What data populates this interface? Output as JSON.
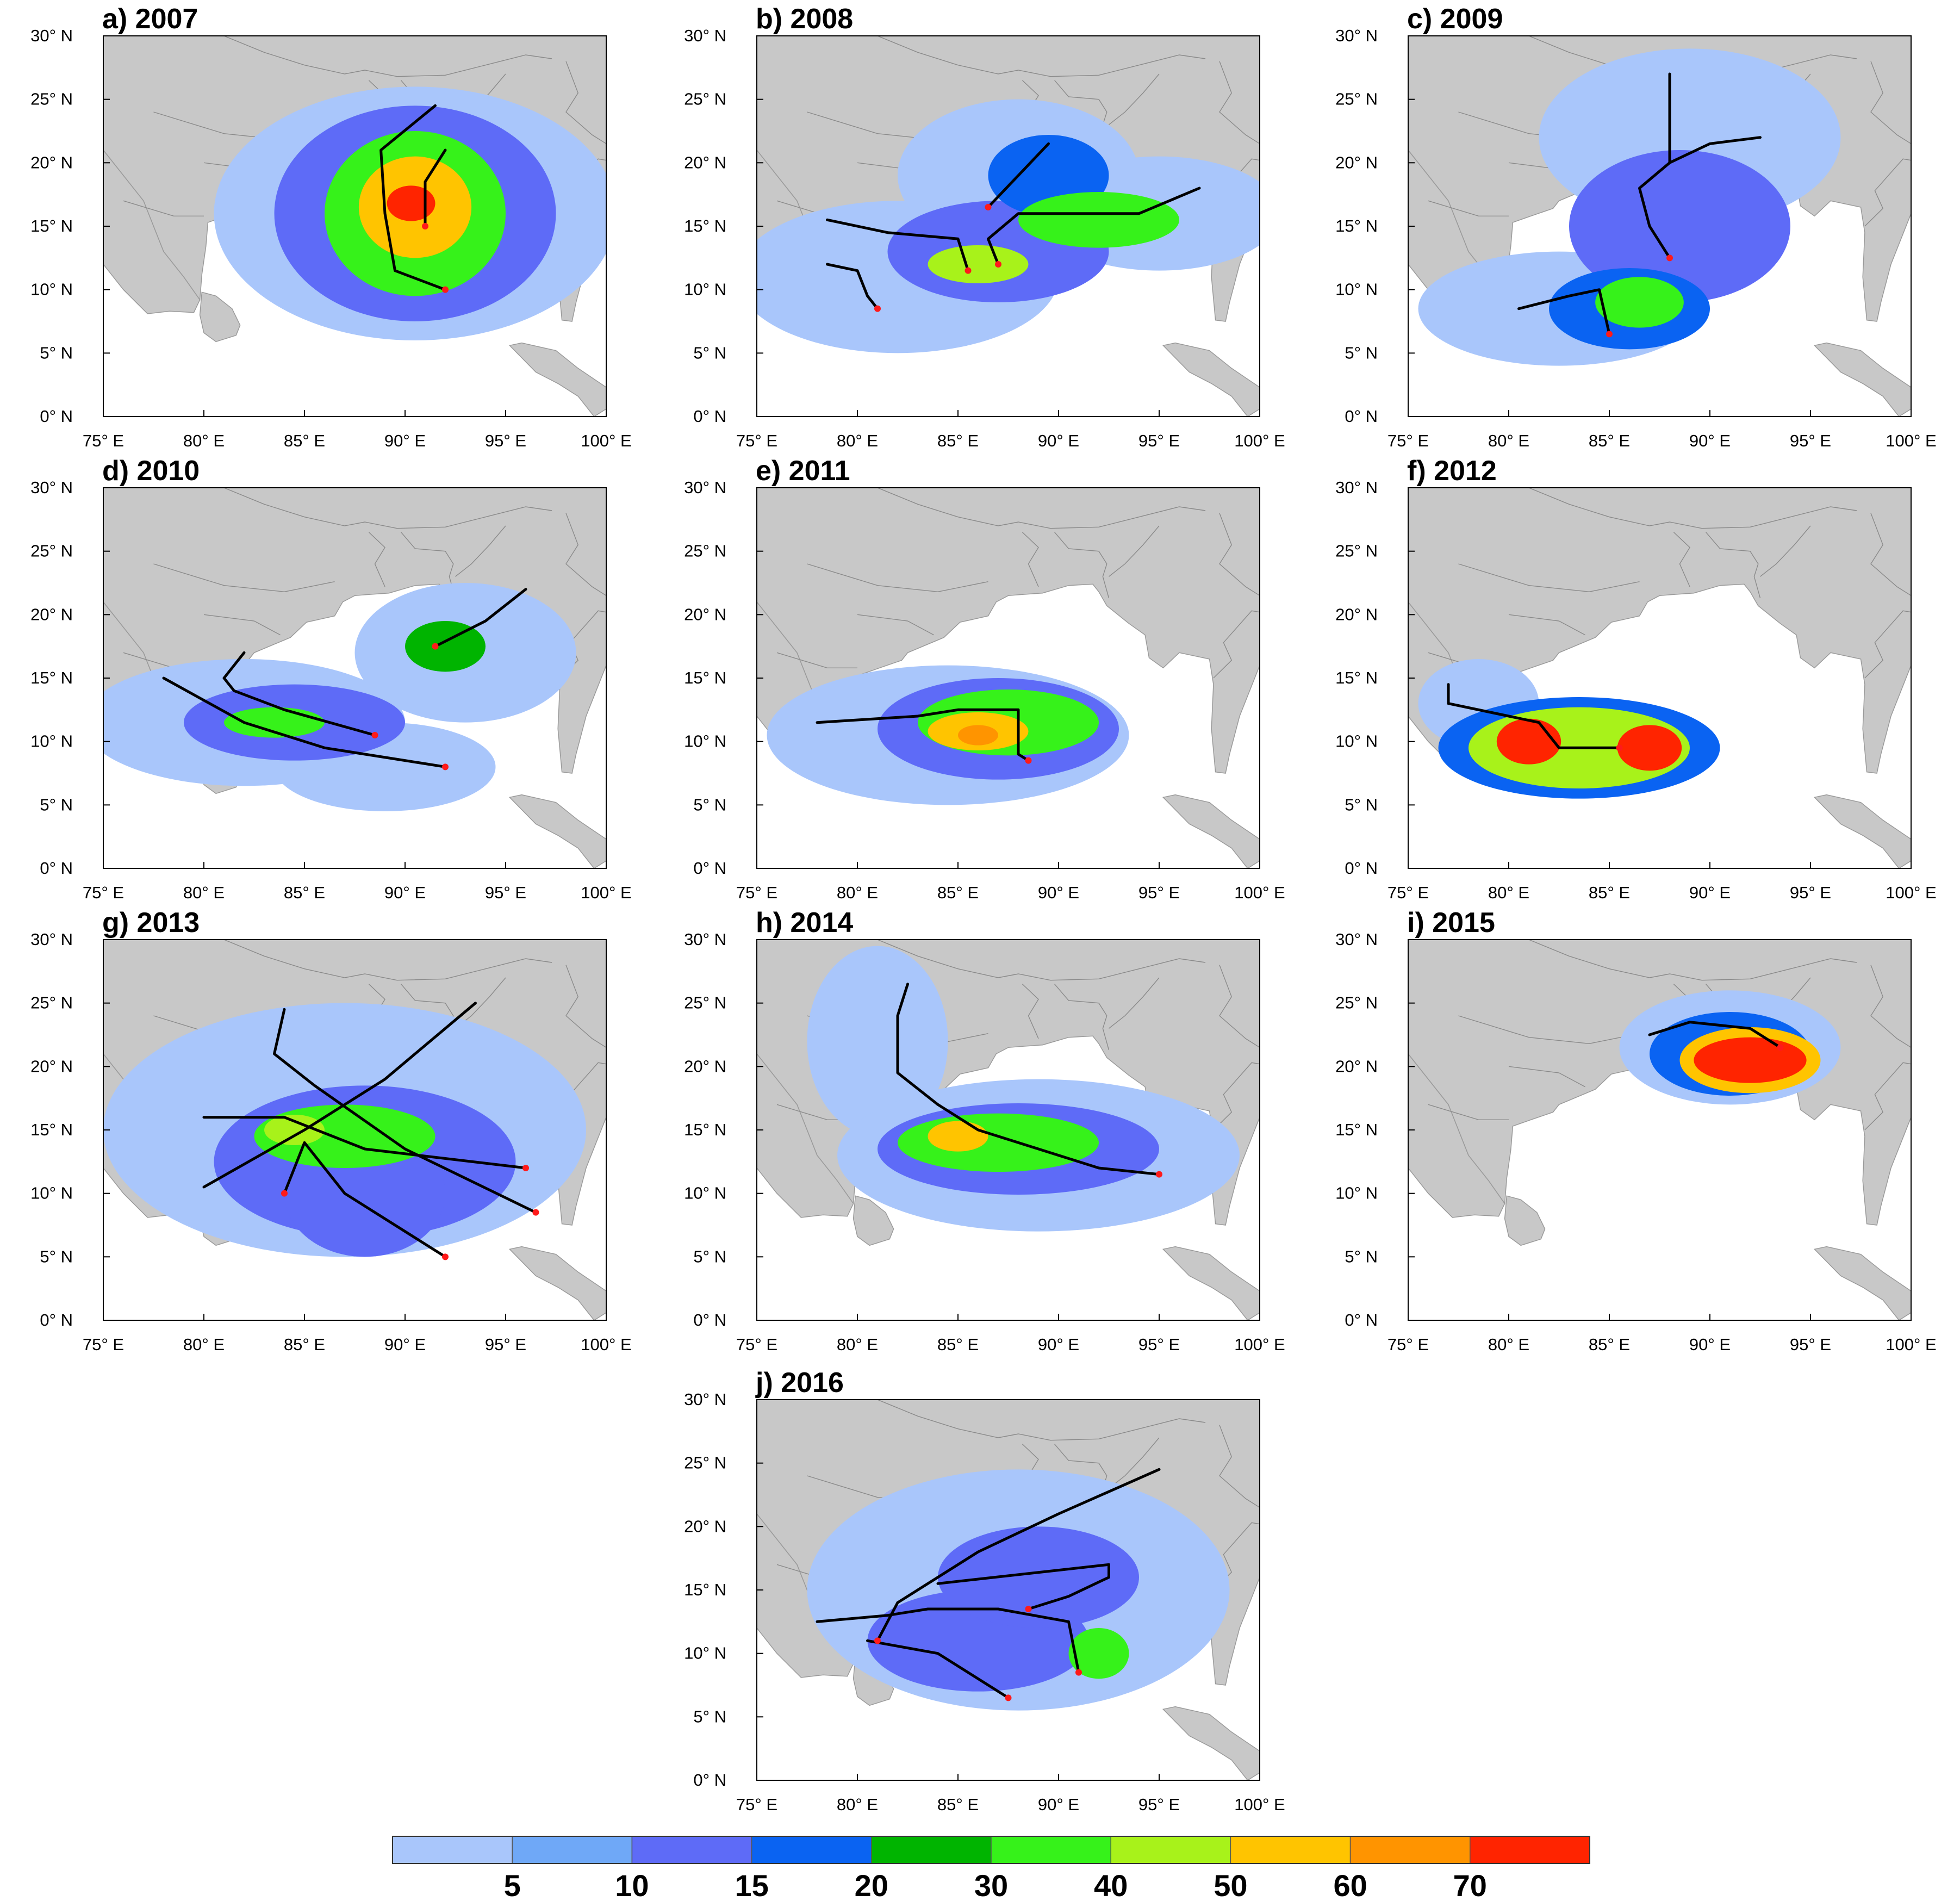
{
  "figure": {
    "x_ticks": [
      "75° E",
      "80° E",
      "85° E",
      "90° E",
      "95° E",
      "100° E"
    ],
    "y_ticks": [
      "0° N",
      "5° N",
      "10° N",
      "15° N",
      "20° N",
      "25° N",
      "30° N"
    ],
    "land_color": "#c8c8c8",
    "sea_color": "#ffffff",
    "track_color": "#000000",
    "genesis_point_color": "#ff1a1a"
  },
  "colorbar": {
    "labels": [
      "5",
      "10",
      "15",
      "20",
      "30",
      "40",
      "50",
      "60",
      "70"
    ],
    "colors": [
      "#a9c6fb",
      "#6fa8f7",
      "#5e6bf7",
      "#0a63f2",
      "#00b400",
      "#36f21a",
      "#a8f21a",
      "#ffc400",
      "#ff9400",
      "#ff2400"
    ]
  },
  "panels": [
    {
      "title": "a) 2007",
      "blobs": [
        {
          "lon": 90.5,
          "lat": 16,
          "rlon": 10,
          "rlat": 10,
          "level": 0
        },
        {
          "lon": 90.5,
          "lat": 16,
          "rlon": 7,
          "rlat": 8.5,
          "level": 2
        },
        {
          "lon": 90.5,
          "lat": 16,
          "rlon": 4.5,
          "rlat": 6.5,
          "level": 5
        },
        {
          "lon": 90.5,
          "lat": 16.5,
          "rlon": 2.8,
          "rlat": 4,
          "level": 7
        },
        {
          "lon": 90.3,
          "lat": 16.8,
          "rlon": 1.2,
          "rlat": 1.4,
          "level": 9
        }
      ],
      "tracks": [
        [
          [
            92,
            10
          ],
          [
            89.5,
            11.5
          ],
          [
            89,
            16
          ],
          [
            88.8,
            21
          ],
          [
            91.5,
            24.5
          ]
        ],
        [
          [
            91,
            15
          ],
          [
            91,
            18.5
          ],
          [
            92,
            21
          ]
        ]
      ],
      "points": [
        [
          92,
          10
        ],
        [
          91,
          15
        ]
      ]
    },
    {
      "title": "b) 2008",
      "blobs": [
        {
          "lon": 82,
          "lat": 11,
          "rlon": 8,
          "rlat": 6,
          "level": 0
        },
        {
          "lon": 88,
          "lat": 19,
          "rlon": 6,
          "rlat": 6,
          "level": 0
        },
        {
          "lon": 95,
          "lat": 16,
          "rlon": 6,
          "rlat": 4.5,
          "level": 0
        },
        {
          "lon": 87,
          "lat": 13,
          "rlon": 5.5,
          "rlat": 4,
          "level": 2
        },
        {
          "lon": 89.5,
          "lat": 19,
          "rlon": 3,
          "rlat": 3.2,
          "level": 3
        },
        {
          "lon": 92,
          "lat": 15.5,
          "rlon": 4,
          "rlat": 2.2,
          "level": 5
        },
        {
          "lon": 86,
          "lat": 12,
          "rlon": 2.5,
          "rlat": 1.5,
          "level": 6
        }
      ],
      "tracks": [
        [
          [
            78.5,
            15.5
          ],
          [
            81.5,
            14.5
          ],
          [
            85,
            14
          ],
          [
            85.5,
            11.5
          ]
        ],
        [
          [
            78.5,
            12
          ],
          [
            80,
            11.5
          ],
          [
            80.5,
            9.5
          ],
          [
            81,
            8.5
          ]
        ],
        [
          [
            87,
            12
          ],
          [
            86.5,
            14
          ],
          [
            88,
            16
          ],
          [
            94,
            16
          ],
          [
            97,
            18
          ]
        ],
        [
          [
            86.5,
            16.5
          ],
          [
            88,
            19
          ],
          [
            89.5,
            21.5
          ]
        ]
      ],
      "points": [
        [
          85.5,
          11.5
        ],
        [
          81,
          8.5
        ],
        [
          87,
          12
        ],
        [
          86.5,
          16.5
        ]
      ]
    },
    {
      "title": "c) 2009",
      "blobs": [
        {
          "lon": 89,
          "lat": 22,
          "rlon": 7.5,
          "rlat": 7,
          "level": 0
        },
        {
          "lon": 82.5,
          "lat": 8.5,
          "rlon": 7,
          "rlat": 4.5,
          "level": 0
        },
        {
          "lon": 88.5,
          "lat": 15,
          "rlon": 5.5,
          "rlat": 6,
          "level": 2
        },
        {
          "lon": 86,
          "lat": 8.5,
          "rlon": 4,
          "rlat": 3.2,
          "level": 3
        },
        {
          "lon": 86.5,
          "lat": 9,
          "rlon": 2.2,
          "rlat": 2,
          "level": 5
        }
      ],
      "tracks": [
        [
          [
            88,
            12.5
          ],
          [
            87,
            15
          ],
          [
            86.5,
            18
          ],
          [
            88,
            20
          ],
          [
            88,
            27
          ]
        ],
        [
          [
            88,
            20
          ],
          [
            90,
            21.5
          ],
          [
            92.5,
            22
          ]
        ],
        [
          [
            85,
            6.5
          ],
          [
            84.5,
            10
          ],
          [
            83,
            9.5
          ],
          [
            80.5,
            8.5
          ]
        ]
      ],
      "points": [
        [
          88,
          12.5
        ],
        [
          85,
          6.5
        ]
      ]
    },
    {
      "title": "d) 2010",
      "blobs": [
        {
          "lon": 82,
          "lat": 11.5,
          "rlon": 8,
          "rlat": 5,
          "level": 0
        },
        {
          "lon": 89,
          "lat": 8,
          "rlon": 5.5,
          "rlat": 3.5,
          "level": 0
        },
        {
          "lon": 93,
          "lat": 17,
          "rlon": 5.5,
          "rlat": 5.5,
          "level": 0
        },
        {
          "lon": 84.5,
          "lat": 11.5,
          "rlon": 5.5,
          "rlat": 3,
          "level": 2
        },
        {
          "lon": 92,
          "lat": 17.5,
          "rlon": 2,
          "rlat": 2,
          "level": 4
        },
        {
          "lon": 83.5,
          "lat": 11.5,
          "rlon": 2.5,
          "rlat": 1.2,
          "level": 5
        }
      ],
      "tracks": [
        [
          [
            88.5,
            10.5
          ],
          [
            84,
            12.5
          ],
          [
            81.5,
            14
          ],
          [
            81,
            15
          ],
          [
            82,
            17
          ]
        ],
        [
          [
            92,
            8
          ],
          [
            86,
            9.5
          ],
          [
            82,
            11.5
          ],
          [
            78,
            15
          ]
        ],
        [
          [
            91.5,
            17.5
          ],
          [
            94,
            19.5
          ],
          [
            96,
            22
          ]
        ]
      ],
      "points": [
        [
          88.5,
          10.5
        ],
        [
          92,
          8
        ],
        [
          91.5,
          17.5
        ]
      ]
    },
    {
      "title": "e) 2011",
      "blobs": [
        {
          "lon": 84.5,
          "lat": 10.5,
          "rlon": 9,
          "rlat": 5.5,
          "level": 0
        },
        {
          "lon": 87,
          "lat": 11,
          "rlon": 6,
          "rlat": 4,
          "level": 2
        },
        {
          "lon": 87.5,
          "lat": 11.5,
          "rlon": 4.5,
          "rlat": 2.6,
          "level": 5
        },
        {
          "lon": 86,
          "lat": 10.8,
          "rlon": 2.5,
          "rlat": 1.5,
          "level": 7
        },
        {
          "lon": 86,
          "lat": 10.5,
          "rlon": 1,
          "rlat": 0.8,
          "level": 8
        }
      ],
      "tracks": [
        [
          [
            88.5,
            8.5
          ],
          [
            88,
            9
          ],
          [
            88,
            12.5
          ],
          [
            85,
            12.5
          ],
          [
            83,
            12
          ],
          [
            78,
            11.5
          ]
        ]
      ],
      "points": [
        [
          88.5,
          8.5
        ]
      ]
    },
    {
      "title": "f) 2012",
      "blobs": [
        {
          "lon": 78.5,
          "lat": 13,
          "rlon": 3,
          "rlat": 3.5,
          "level": 0
        },
        {
          "lon": 83.5,
          "lat": 9.5,
          "rlon": 7,
          "rlat": 4,
          "level": 3
        },
        {
          "lon": 83.5,
          "lat": 9.5,
          "rlon": 5.5,
          "rlat": 3.2,
          "level": 6
        },
        {
          "lon": 81,
          "lat": 10,
          "rlon": 1.6,
          "rlat": 1.8,
          "level": 9
        },
        {
          "lon": 87,
          "lat": 9.5,
          "rlon": 1.6,
          "rlat": 1.8,
          "level": 9
        }
      ],
      "tracks": [
        [
          [
            77,
            14.5
          ],
          [
            77,
            13
          ],
          [
            80,
            12
          ],
          [
            81.5,
            11.5
          ],
          [
            82.5,
            9.5
          ],
          [
            85.5,
            9.5
          ]
        ]
      ],
      "points": [
        [
          85.5,
          9.5
        ]
      ]
    },
    {
      "title": "g) 2013",
      "blobs": [
        {
          "lon": 87,
          "lat": 15,
          "rlon": 12,
          "rlat": 10,
          "level": 0
        },
        {
          "lon": 88,
          "lat": 12.5,
          "rlon": 7.5,
          "rlat": 6,
          "level": 2
        },
        {
          "lon": 88,
          "lat": 10,
          "rlon": 4,
          "rlat": 5,
          "level": 2
        },
        {
          "lon": 87,
          "lat": 14.5,
          "rlon": 4.5,
          "rlat": 2.5,
          "level": 5
        },
        {
          "lon": 84.5,
          "lat": 15,
          "rlon": 1.5,
          "rlat": 1.2,
          "level": 6
        }
      ],
      "tracks": [
        [
          [
            96,
            12
          ],
          [
            88,
            13.5
          ],
          [
            84,
            16
          ],
          [
            80,
            16
          ]
        ],
        [
          [
            96.5,
            8.5
          ],
          [
            90,
            13.5
          ],
          [
            85.5,
            18.5
          ],
          [
            83.5,
            21
          ],
          [
            84,
            24.5
          ]
        ],
        [
          [
            92,
            5
          ],
          [
            87,
            10
          ],
          [
            85,
            14
          ],
          [
            84,
            10
          ]
        ],
        [
          [
            80,
            10.5
          ],
          [
            85,
            15
          ],
          [
            89,
            19
          ],
          [
            93.5,
            25
          ]
        ]
      ],
      "points": [
        [
          96,
          12
        ],
        [
          96.5,
          8.5
        ],
        [
          92,
          5
        ],
        [
          84,
          10
        ]
      ]
    },
    {
      "title": "h) 2014",
      "blobs": [
        {
          "lon": 81,
          "lat": 22,
          "rlon": 3.5,
          "rlat": 7.5,
          "level": 0
        },
        {
          "lon": 89,
          "lat": 13,
          "rlon": 10,
          "rlat": 6,
          "level": 0
        },
        {
          "lon": 88,
          "lat": 13.5,
          "rlon": 7,
          "rlat": 3.6,
          "level": 2
        },
        {
          "lon": 87,
          "lat": 14,
          "rlon": 5,
          "rlat": 2.3,
          "level": 5
        },
        {
          "lon": 85,
          "lat": 14.5,
          "rlon": 1.5,
          "rlat": 1.2,
          "level": 7
        }
      ],
      "tracks": [
        [
          [
            95,
            11.5
          ],
          [
            92,
            12
          ],
          [
            89,
            13.5
          ],
          [
            86,
            15
          ],
          [
            84,
            17
          ],
          [
            82,
            19.5
          ],
          [
            82,
            24
          ],
          [
            82.5,
            26.5
          ]
        ]
      ],
      "points": [
        [
          95,
          11.5
        ]
      ]
    },
    {
      "title": "i) 2015",
      "blobs": [
        {
          "lon": 91,
          "lat": 21.5,
          "rlon": 5.5,
          "rlat": 4.5,
          "level": 0
        },
        {
          "lon": 91,
          "lat": 21,
          "rlon": 4,
          "rlat": 3.3,
          "level": 3
        },
        {
          "lon": 92,
          "lat": 20.5,
          "rlon": 3.5,
          "rlat": 2.6,
          "level": 7
        },
        {
          "lon": 92,
          "lat": 20.5,
          "rlon": 2.8,
          "rlat": 1.8,
          "level": 9
        }
      ],
      "tracks": [
        [
          [
            93.5,
            21.5
          ],
          [
            92,
            23
          ],
          [
            89,
            23.5
          ],
          [
            87,
            22.5
          ]
        ]
      ],
      "points": [
        [
          93.5,
          21.5
        ]
      ]
    },
    {
      "title": "j) 2016",
      "blobs": [
        {
          "lon": 88,
          "lat": 15,
          "rlon": 10.5,
          "rlat": 9.5,
          "level": 0
        },
        {
          "lon": 86,
          "lat": 11,
          "rlon": 5.5,
          "rlat": 4,
          "level": 2
        },
        {
          "lon": 89,
          "lat": 16,
          "rlon": 5,
          "rlat": 4,
          "level": 2
        },
        {
          "lon": 92,
          "lat": 10,
          "rlon": 1.5,
          "rlat": 2,
          "level": 5
        }
      ],
      "tracks": [
        [
          [
            81,
            11
          ],
          [
            82,
            14
          ],
          [
            86,
            18
          ],
          [
            90,
            21
          ],
          [
            95,
            24.5
          ]
        ],
        [
          [
            88.5,
            13.5
          ],
          [
            90.5,
            14.5
          ],
          [
            92.5,
            16
          ],
          [
            92.5,
            17
          ],
          [
            84,
            15.5
          ]
        ],
        [
          [
            91,
            8.5
          ],
          [
            90.5,
            12.5
          ],
          [
            87,
            13.5
          ],
          [
            83.5,
            13.5
          ],
          [
            81.5,
            13
          ],
          [
            78,
            12.5
          ]
        ],
        [
          [
            87.5,
            6.5
          ],
          [
            84,
            10
          ],
          [
            80.5,
            11
          ]
        ]
      ],
      "points": [
        [
          81,
          11
        ],
        [
          88.5,
          13.5
        ],
        [
          91,
          8.5
        ],
        [
          87.5,
          6.5
        ]
      ]
    }
  ]
}
